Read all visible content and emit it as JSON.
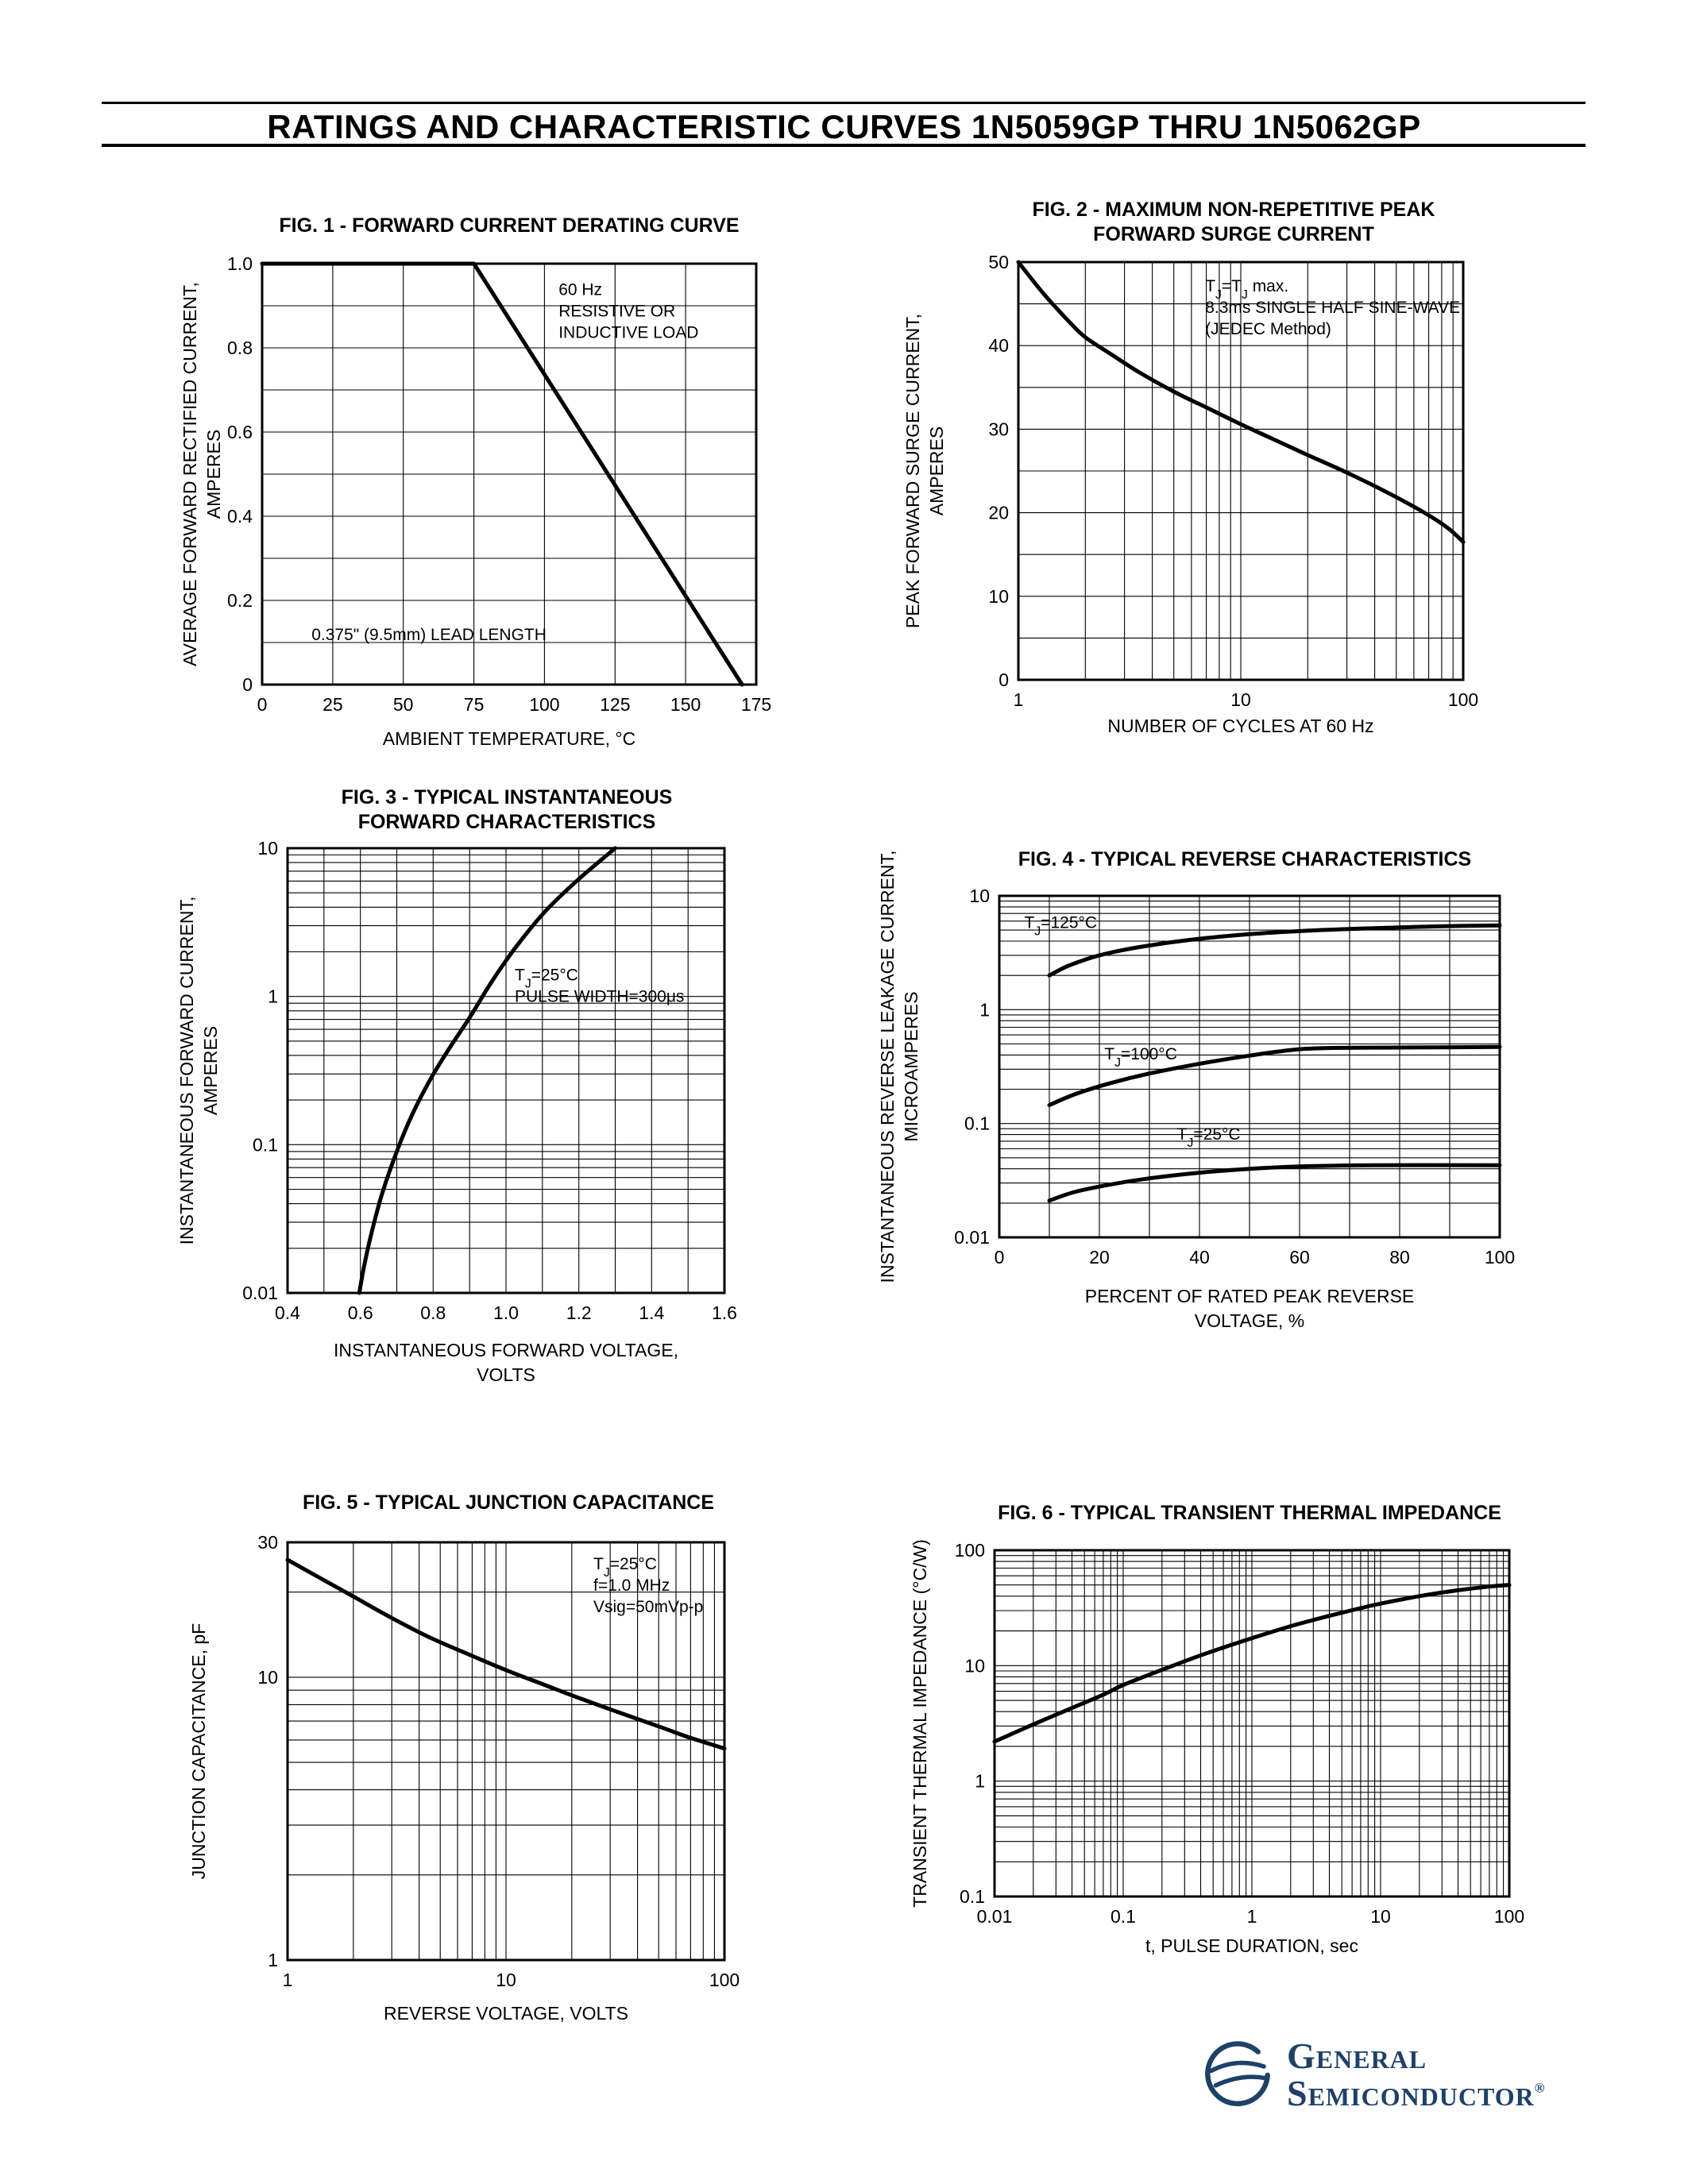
{
  "page": {
    "title": "RATINGS AND CHARACTERISTIC CURVES 1N5059GP THRU 1N5062GP"
  },
  "footer": {
    "brand_top": "General",
    "brand_bottom": "Semiconductor",
    "registered": "®",
    "brand_color": "#1e4168"
  },
  "chart_data": [
    {
      "id": "fig1",
      "type": "line",
      "title": [
        "FIG. 1 -  FORWARD CURRENT DERATING CURVE"
      ],
      "xlabel": [
        "AMBIENT TEMPERATURE, °C"
      ],
      "ylabel": [
        "AVERAGE FORWARD RECTIFIED CURRENT,",
        "AMPERES"
      ],
      "xscale": "linear",
      "yscale": "linear",
      "xlim": [
        0,
        175
      ],
      "ylim": [
        0,
        1.0
      ],
      "xticks": [
        0,
        25,
        50,
        75,
        100,
        125,
        150,
        175
      ],
      "xtick_labels": [
        "0",
        "25",
        "50",
        "75",
        "100",
        "125",
        "150",
        "175"
      ],
      "yticks": [
        0,
        0.2,
        0.4,
        0.6,
        0.8,
        1.0
      ],
      "ytick_labels": [
        "0",
        "0.2",
        "0.4",
        "0.6",
        "0.8",
        "1.0"
      ],
      "xminor": 1,
      "yminor": 2,
      "grid": true,
      "annotations": [
        {
          "fx": 0.6,
          "fy": 0.035,
          "lines": [
            "60 Hz",
            "RESISTIVE OR",
            "INDUCTIVE LOAD"
          ]
        },
        {
          "fx": 0.1,
          "fy": 0.855,
          "lines": [
            "0.375\" (9.5mm) LEAD LENGTH"
          ]
        }
      ],
      "series": [
        {
          "name": "derating-curve",
          "smooth": false,
          "points": [
            [
              0,
              1.0
            ],
            [
              75,
              1.0
            ],
            [
              170,
              0
            ]
          ]
        }
      ]
    },
    {
      "id": "fig2",
      "type": "line",
      "title": [
        "FIG. 2 - MAXIMUM NON-REPETITIVE PEAK",
        "FORWARD SURGE CURRENT"
      ],
      "xlabel": [
        "NUMBER OF CYCLES AT 60 Hz"
      ],
      "ylabel": [
        "PEAK FORWARD SURGE CURRENT,",
        "AMPERES"
      ],
      "xscale": "log",
      "yscale": "linear",
      "xlim": [
        1,
        100
      ],
      "ylim": [
        0,
        50
      ],
      "xticks": [
        1,
        10,
        100
      ],
      "xtick_labels": [
        "1",
        "10",
        "100"
      ],
      "yticks": [
        0,
        10,
        20,
        30,
        40,
        50
      ],
      "ytick_labels": [
        "0",
        "10",
        "20",
        "30",
        "40",
        "50"
      ],
      "xminor": 1,
      "yminor": 2,
      "grid": true,
      "annotations": [
        {
          "fx": 0.42,
          "fy": 0.03,
          "lines": [
            "TJ=TJ max.",
            "8.3ms SINGLE HALF SINE-WAVE",
            "(JEDEC Method)"
          ]
        }
      ],
      "series": [
        {
          "name": "surge-current",
          "smooth": true,
          "points": [
            [
              1,
              50
            ],
            [
              1.3,
              46.2
            ],
            [
              1.7,
              42.8
            ],
            [
              2,
              41
            ],
            [
              2.6,
              39
            ],
            [
              3.5,
              36.8
            ],
            [
              5,
              34.5
            ],
            [
              7,
              32.6
            ],
            [
              10,
              30.6
            ],
            [
              14,
              28.8
            ],
            [
              20,
              26.9
            ],
            [
              30,
              24.8
            ],
            [
              45,
              22.5
            ],
            [
              65,
              20.2
            ],
            [
              85,
              18.2
            ],
            [
              100,
              16.5
            ]
          ]
        }
      ]
    },
    {
      "id": "fig3",
      "type": "line",
      "title": [
        "FIG. 3 - TYPICAL INSTANTANEOUS",
        "FORWARD CHARACTERISTICS"
      ],
      "xlabel": [
        "INSTANTANEOUS FORWARD VOLTAGE,",
        "VOLTS"
      ],
      "ylabel": [
        "INSTANTANEOUS FORWARD CURRENT,",
        "AMPERES"
      ],
      "xscale": "linear",
      "yscale": "log",
      "xlim": [
        0.4,
        1.6
      ],
      "ylim": [
        0.01,
        10
      ],
      "xticks": [
        0.4,
        0.6,
        0.8,
        1.0,
        1.2,
        1.4,
        1.6
      ],
      "xtick_labels": [
        "0.4",
        "0.6",
        "0.8",
        "1.0",
        "1.2",
        "1.4",
        "1.6"
      ],
      "yticks": [
        0.01,
        0.1,
        1,
        10
      ],
      "ytick_labels": [
        "0.01",
        "0.1",
        "1",
        "10"
      ],
      "xminor": 2,
      "yminor": 1,
      "grid": true,
      "annotations": [
        {
          "fx": 0.52,
          "fy": 0.26,
          "lines": [
            "TJ=25°C",
            "PULSE WIDTH=300μs"
          ]
        }
      ],
      "series": [
        {
          "name": "forward-characteristic",
          "smooth": true,
          "points": [
            [
              0.597,
              0.01
            ],
            [
              0.61,
              0.015
            ],
            [
              0.63,
              0.025
            ],
            [
              0.66,
              0.047
            ],
            [
              0.7,
              0.09
            ],
            [
              0.74,
              0.155
            ],
            [
              0.79,
              0.27
            ],
            [
              0.84,
              0.43
            ],
            [
              0.9,
              0.72
            ],
            [
              0.96,
              1.25
            ],
            [
              1.03,
              2.2
            ],
            [
              1.11,
              3.8
            ],
            [
              1.2,
              6.2
            ],
            [
              1.3,
              10
            ]
          ]
        }
      ]
    },
    {
      "id": "fig4",
      "type": "line",
      "title": [
        "FIG. 4 - TYPICAL REVERSE CHARACTERISTICS"
      ],
      "xlabel": [
        "PERCENT OF RATED PEAK REVERSE",
        "VOLTAGE, %"
      ],
      "ylabel": [
        "INSTANTANEOUS REVERSE LEAKAGE CURRENT,",
        "MICROAMPERES"
      ],
      "xscale": "linear",
      "yscale": "log",
      "xlim": [
        0,
        100
      ],
      "ylim": [
        0.01,
        10
      ],
      "xticks": [
        0,
        20,
        40,
        60,
        80,
        100
      ],
      "xtick_labels": [
        "0",
        "20",
        "40",
        "60",
        "80",
        "100"
      ],
      "yticks": [
        0.01,
        0.1,
        1,
        10
      ],
      "ytick_labels": [
        "0.01",
        "0.1",
        "1",
        "10"
      ],
      "xminor": 2,
      "yminor": 1,
      "grid": true,
      "annotations": [
        {
          "fx": 0.05,
          "fy": 0.045,
          "lines": [
            "TJ=125°C"
          ]
        },
        {
          "fx": 0.21,
          "fy": 0.43,
          "lines": [
            "TJ=100°C"
          ]
        },
        {
          "fx": 0.355,
          "fy": 0.665,
          "lines": [
            "TJ=25°C"
          ]
        }
      ],
      "series": [
        {
          "name": "tj-125c",
          "smooth": true,
          "points": [
            [
              10,
              2.0
            ],
            [
              14,
              2.45
            ],
            [
              20,
              3.0
            ],
            [
              28,
              3.55
            ],
            [
              38,
              4.1
            ],
            [
              50,
              4.6
            ],
            [
              62,
              4.95
            ],
            [
              75,
              5.2
            ],
            [
              88,
              5.4
            ],
            [
              100,
              5.5
            ]
          ]
        },
        {
          "name": "tj-100c",
          "smooth": true,
          "points": [
            [
              10,
              0.145
            ],
            [
              15,
              0.18
            ],
            [
              22,
              0.225
            ],
            [
              30,
              0.275
            ],
            [
              40,
              0.335
            ],
            [
              50,
              0.395
            ],
            [
              58,
              0.44
            ],
            [
              65,
              0.46
            ],
            [
              80,
              0.465
            ],
            [
              100,
              0.47
            ]
          ]
        },
        {
          "name": "tj-25c",
          "smooth": true,
          "points": [
            [
              10,
              0.021
            ],
            [
              15,
              0.025
            ],
            [
              22,
              0.029
            ],
            [
              30,
              0.033
            ],
            [
              40,
              0.037
            ],
            [
              50,
              0.04
            ],
            [
              60,
              0.042
            ],
            [
              75,
              0.043
            ],
            [
              100,
              0.043
            ]
          ]
        }
      ]
    },
    {
      "id": "fig5",
      "type": "line",
      "title": [
        "FIG. 5 - TYPICAL JUNCTION CAPACITANCE"
      ],
      "xlabel": [
        "REVERSE VOLTAGE, VOLTS"
      ],
      "ylabel": [
        "JUNCTION CAPACITANCE, pF"
      ],
      "xscale": "log",
      "yscale": "log",
      "xlim": [
        1,
        100
      ],
      "ylim": [
        1,
        30
      ],
      "xticks": [
        1,
        10,
        100
      ],
      "xtick_labels": [
        "1",
        "10",
        "100"
      ],
      "yticks": [
        1,
        10,
        30
      ],
      "ytick_labels": [
        "1",
        "10",
        "30"
      ],
      "xminor": 1,
      "yminor": 1,
      "grid": true,
      "annotations": [
        {
          "fx": 0.7,
          "fy": 0.025,
          "lines": [
            "TJ=25°C",
            "f=1.0 MHz",
            "Vsig=50mVp-p"
          ]
        }
      ],
      "series": [
        {
          "name": "junction-capacitance",
          "smooth": true,
          "points": [
            [
              1,
              26
            ],
            [
              1.4,
              22.5
            ],
            [
              2,
              19.3
            ],
            [
              3,
              16.2
            ],
            [
              4.5,
              13.8
            ],
            [
              7,
              11.9
            ],
            [
              10,
              10.6
            ],
            [
              15,
              9.4
            ],
            [
              22,
              8.4
            ],
            [
              33,
              7.5
            ],
            [
              50,
              6.7
            ],
            [
              70,
              6.1
            ],
            [
              100,
              5.6
            ]
          ]
        }
      ]
    },
    {
      "id": "fig6",
      "type": "line",
      "title": [
        "FIG. 6 - TYPICAL TRANSIENT THERMAL IMPEDANCE"
      ],
      "xlabel": [
        "t, PULSE DURATION, sec"
      ],
      "ylabel": [
        "TRANSIENT THERMAL IMPEDANCE (°C/W)"
      ],
      "xscale": "log",
      "yscale": "log",
      "xlim": [
        0.01,
        100
      ],
      "ylim": [
        0.1,
        100
      ],
      "xticks": [
        0.01,
        0.1,
        1,
        10,
        100
      ],
      "xtick_labels": [
        "0.01",
        "0.1",
        "1",
        "10",
        "100"
      ],
      "yticks": [
        0.1,
        1,
        10,
        100
      ],
      "ytick_labels": [
        "0.1",
        "1",
        "10",
        "100"
      ],
      "xminor": 1,
      "yminor": 1,
      "grid": true,
      "annotations": [],
      "series": [
        {
          "name": "thermal-impedance",
          "smooth": true,
          "points": [
            [
              0.01,
              2.2
            ],
            [
              0.02,
              3.1
            ],
            [
              0.04,
              4.3
            ],
            [
              0.07,
              5.6
            ],
            [
              0.1,
              6.8
            ],
            [
              0.2,
              9.2
            ],
            [
              0.4,
              12.3
            ],
            [
              0.7,
              15.2
            ],
            [
              1,
              17.3
            ],
            [
              2,
              22
            ],
            [
              4,
              27
            ],
            [
              7,
              31.5
            ],
            [
              10,
              34.5
            ],
            [
              20,
              40
            ],
            [
              40,
              45
            ],
            [
              70,
              48.5
            ],
            [
              100,
              50
            ]
          ]
        }
      ]
    }
  ]
}
